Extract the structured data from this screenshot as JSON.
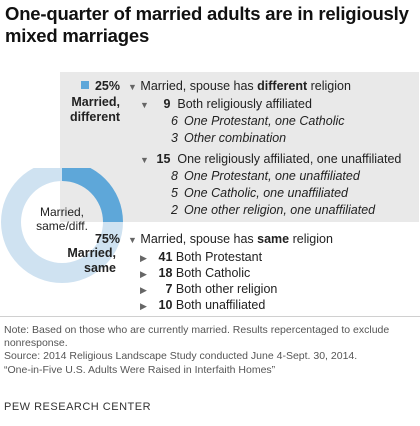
{
  "title": "One-quarter of married adults are in religiously mixed marriages",
  "chart_data": {
    "type": "pie",
    "center_label": "Married, same/diff.",
    "series": [
      {
        "name": "Married, different",
        "value": 25,
        "label": "25%",
        "color": "#5ea7d9"
      },
      {
        "name": "Married, same",
        "value": 75,
        "label": "75%",
        "color": "#cfe2f1"
      }
    ]
  },
  "different": {
    "header_pre": "Married, spouse has ",
    "header_bold": "different",
    "header_post": " religion",
    "groups": [
      {
        "value": "9",
        "label": "Both religiously affiliated",
        "items": [
          {
            "value": "6",
            "label": "One Protestant, one Catholic"
          },
          {
            "value": "3",
            "label": "Other combination"
          }
        ]
      },
      {
        "value": "15",
        "label": "One religiously affiliated, one unaffiliated",
        "items": [
          {
            "value": "8",
            "label": "One Protestant, one unaffiliated"
          },
          {
            "value": "5",
            "label": "One Catholic, one unaffiliated"
          },
          {
            "value": "2",
            "label": "One other religion, one unaffiliated"
          }
        ]
      }
    ]
  },
  "same": {
    "header_pre": "Married, spouse has ",
    "header_bold": "same",
    "header_post": " religion",
    "items": [
      {
        "value": "41",
        "label": "Both Protestant"
      },
      {
        "value": "18",
        "label": "Both Catholic"
      },
      {
        "value": "7",
        "label": "Both other religion"
      },
      {
        "value": "10",
        "label": "Both unaffiliated"
      }
    ]
  },
  "notes": [
    "Note: Based on those who are currently married. Results repercentaged to exclude nonresponse.",
    "Source: 2014 Religious Landscape Study conducted June 4-Sept. 30, 2014.",
    "“One-in-Five U.S. Adults Were Raised in Interfaith Homes”"
  ],
  "credit": "PEW RESEARCH CENTER"
}
